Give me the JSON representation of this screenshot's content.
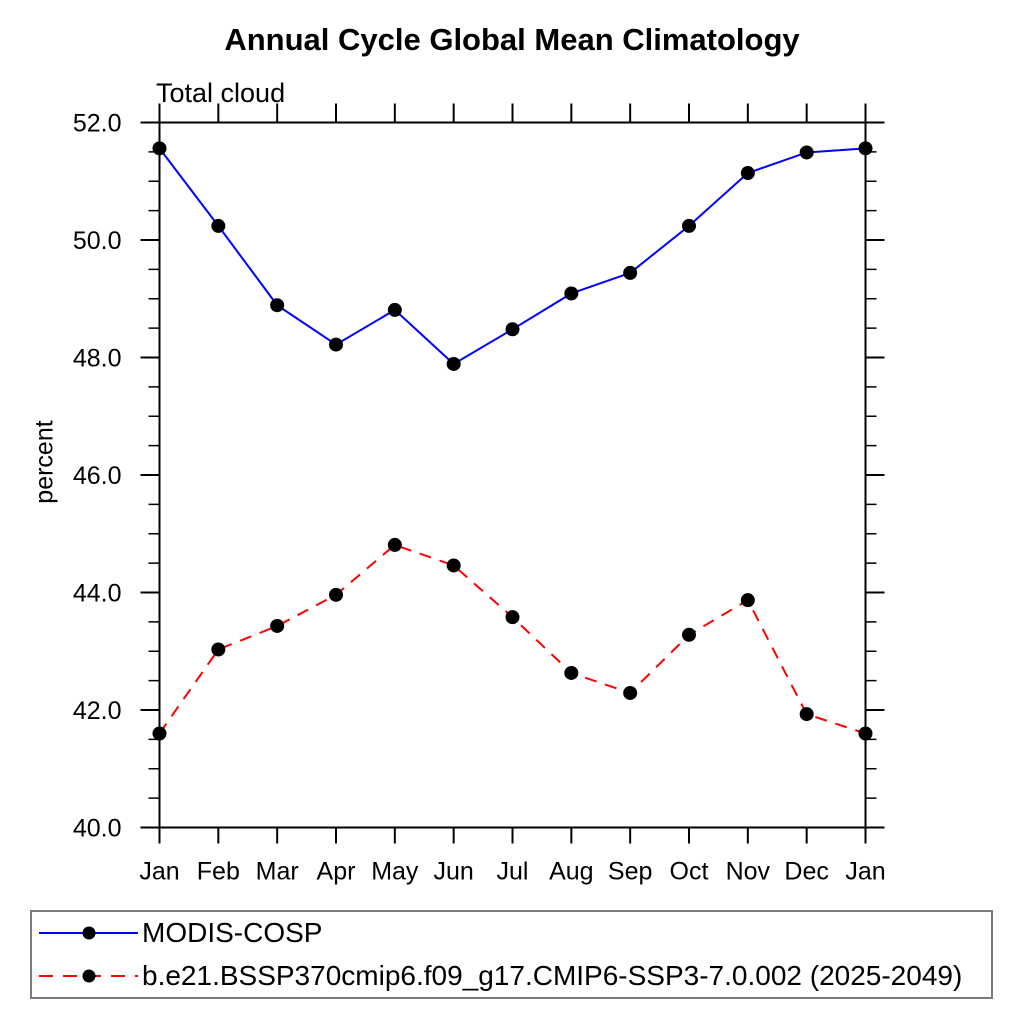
{
  "page": {
    "background": "#ffffff"
  },
  "chart_data": {
    "type": "line",
    "title": "Annual Cycle Global Mean Climatology",
    "subtitle": "Total cloud",
    "ylabel": "percent",
    "xlabel": "",
    "categories": [
      "Jan",
      "Feb",
      "Mar",
      "Apr",
      "May",
      "Jun",
      "Jul",
      "Aug",
      "Sep",
      "Oct",
      "Nov",
      "Dec",
      "Jan"
    ],
    "ylim": [
      40.0,
      52.0
    ],
    "ytick_step": 2.0,
    "ytick_minor_step": 0.5,
    "ytick_decimals": 1,
    "grid": false,
    "legend_position": "bottom-left-box",
    "axis_color": "#000000",
    "marker_color": "#000000",
    "series": [
      {
        "name": "MODIS-COSP",
        "color": "#0000ff",
        "line_style": "solid",
        "marker": "circle",
        "values": [
          51.56,
          50.24,
          48.89,
          48.22,
          48.81,
          47.89,
          48.48,
          49.09,
          49.44,
          50.24,
          51.14,
          51.49,
          51.56
        ]
      },
      {
        "name": "b.e21.BSSP370cmip6.f09_g17.CMIP6-SSP3-7.0.002 (2025-2049)",
        "color": "#ff0000",
        "line_style": "dashed",
        "marker": "circle",
        "values": [
          41.6,
          43.03,
          43.43,
          43.96,
          44.81,
          44.46,
          43.58,
          42.63,
          42.29,
          43.28,
          43.87,
          41.93,
          41.6
        ]
      }
    ]
  }
}
